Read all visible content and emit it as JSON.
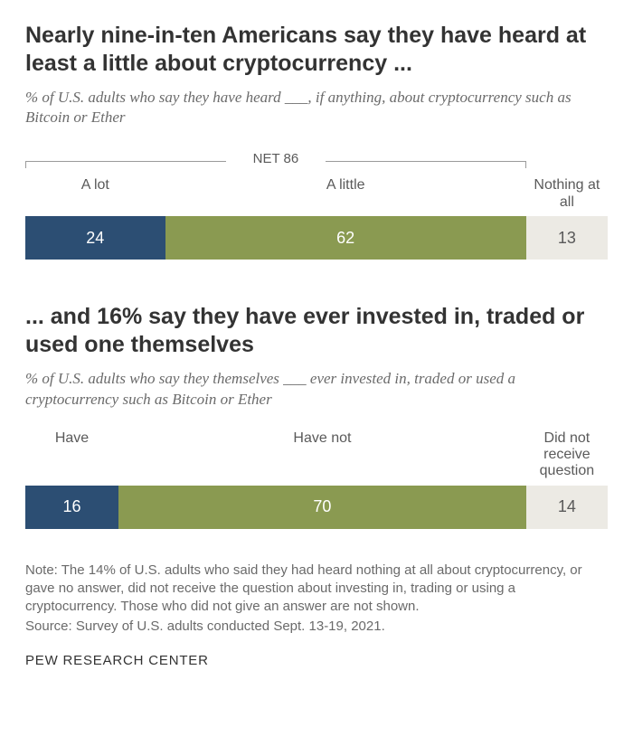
{
  "chart1": {
    "title": "Nearly nine-in-ten Americans say they have heard at least a little about cryptocurrency ...",
    "title_fontsize": 25,
    "subtitle": "% of U.S. adults who say they have heard ___, if anything, about cryptocurrency such as Bitcoin or Ether",
    "subtitle_fontsize": 17,
    "net_label": "NET 86",
    "net_span_pct": 86,
    "label_fontsize": 16,
    "segments": [
      {
        "label": "A lot",
        "value": 24,
        "width_pct": 24,
        "color": "#2c4e73",
        "text_color": "#ffffff"
      },
      {
        "label": "A little",
        "value": 62,
        "width_pct": 62,
        "color": "#8a9a51",
        "text_color": "#ffffff"
      },
      {
        "label": "Nothing at all",
        "value": 13,
        "width_pct": 14,
        "color": "#eceae4",
        "text_color": "#5a5a5a"
      }
    ]
  },
  "chart2": {
    "title": "... and 16% say they have ever invested in, traded or used one themselves",
    "title_fontsize": 25,
    "subtitle": "% of U.S. adults who say they themselves ___ ever invested in, traded or used a cryptocurrency such as Bitcoin or Ether",
    "subtitle_fontsize": 17,
    "label_fontsize": 16,
    "segments": [
      {
        "label": "Have",
        "value": 16,
        "width_pct": 16,
        "color": "#2c4e73",
        "text_color": "#ffffff"
      },
      {
        "label": "Have not",
        "value": 70,
        "width_pct": 70,
        "color": "#8a9a51",
        "text_color": "#ffffff"
      },
      {
        "label": "Did not receive question",
        "value": 14,
        "width_pct": 14,
        "color": "#eceae4",
        "text_color": "#5a5a5a"
      }
    ]
  },
  "note": "Note: The 14% of U.S. adults who said they had heard nothing at all about cryptocurrency, or gave no answer, did not receive the question about investing in, trading or using a cryptocurrency. Those who did not give an answer are not shown.",
  "source": "Source: Survey of U.S. adults conducted Sept. 13-19, 2021.",
  "footer": "PEW RESEARCH CENTER",
  "note_fontsize": 15,
  "footer_fontsize": 15
}
